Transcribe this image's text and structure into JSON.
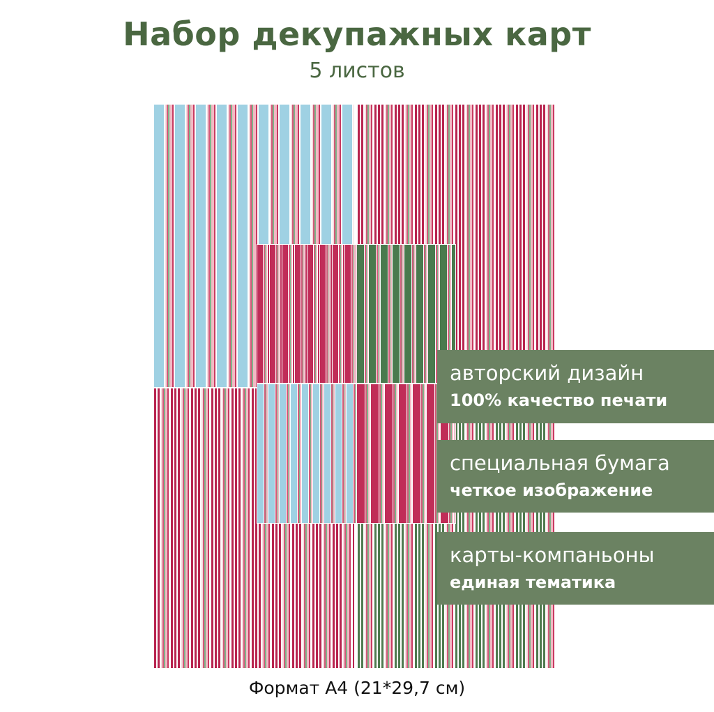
{
  "header": {
    "title": "Набор декупажных карт",
    "subtitle": "5 листов"
  },
  "colors": {
    "title_green": "#4a6741",
    "panel_green": "#6b8262",
    "crimson": "#b8244f",
    "sky_blue": "#9fd1e3",
    "stripe_green": "#4f7a4f"
  },
  "features": [
    {
      "line1": "авторский дизайн",
      "line2": "100% качество печати"
    },
    {
      "line1": "специальная бумага",
      "line2": "четкое изображение"
    },
    {
      "line1": "карты-компаньоны",
      "line2": "единая тематика"
    }
  ],
  "footer": {
    "format": "Формат А4 (21*29,7 см)"
  }
}
